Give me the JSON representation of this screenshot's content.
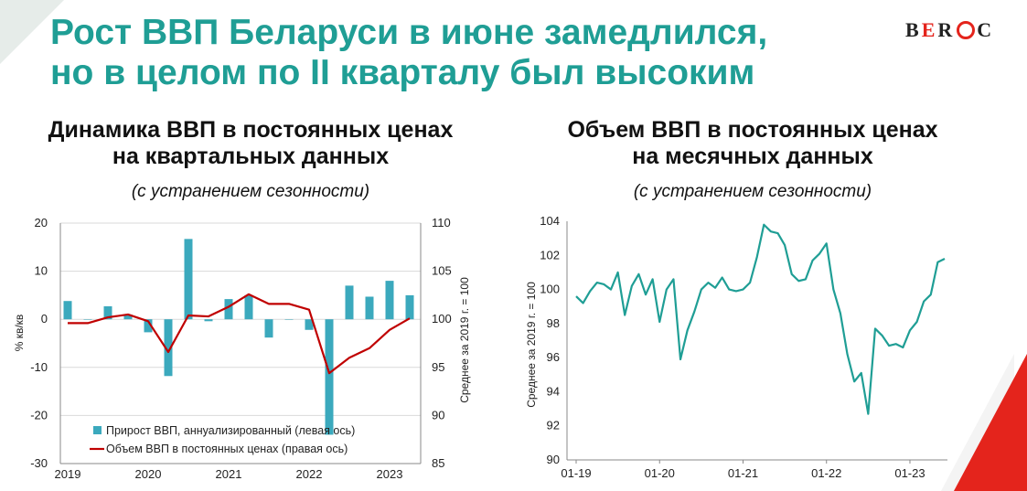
{
  "headline": {
    "line1": "Рост ВВП Беларуси в июне замедлился,",
    "line2": "но в целом по II кварталу был высоким"
  },
  "logo": {
    "b": "B",
    "e": "E",
    "r": "R",
    "c": "C"
  },
  "colors": {
    "accent": "#1f9e95",
    "bar": "#3ba9bd",
    "line_red": "#c00000",
    "line_teal": "#1f9e95",
    "brand_red": "#e4241c"
  },
  "left_chart": {
    "title_line1": "Динамика ВВП в постоянных ценах",
    "title_line2": "на квартальных данных",
    "subtitle": "(с устранением сезонности)"
  },
  "right_chart": {
    "title_line1": "Объем ВВП в постоянных ценах",
    "title_line2": "на месячных данных",
    "subtitle": "(с устранением сезонности)"
  },
  "chart_data": [
    {
      "type": "bar",
      "title": "Динамика ВВП в постоянных ценах на квартальных данных",
      "subtitle": "(с устранением сезонности)",
      "ylabel": "% кв/кв",
      "y2label": "Среднее за 2019 г. = 100",
      "ylim": [
        -30,
        20
      ],
      "y2lim": [
        85,
        110
      ],
      "yticks": [
        "20",
        "10",
        "0",
        "-10",
        "-20",
        "-30"
      ],
      "y2ticks": [
        "110",
        "105",
        "100",
        "95",
        "90",
        "85"
      ],
      "xticks": [
        "2019",
        "2020",
        "2021",
        "2022",
        "2023"
      ],
      "grid": "horizontal",
      "legend_position": "bottom-center",
      "categories": [
        "2019Q1",
        "2019Q2",
        "2019Q3",
        "2019Q4",
        "2020Q1",
        "2020Q2",
        "2020Q3",
        "2020Q4",
        "2021Q1",
        "2021Q2",
        "2021Q3",
        "2021Q4",
        "2022Q1",
        "2022Q2",
        "2022Q3",
        "2022Q4",
        "2023Q1",
        "2023Q2"
      ],
      "series": [
        {
          "name": "Прирост ВВП, аннуализированный (левая ось)",
          "type": "bar",
          "axis": "left",
          "values": [
            3.8,
            0,
            2.7,
            1.0,
            -2.7,
            -11.8,
            16.7,
            -0.4,
            4.2,
            5.0,
            -3.8,
            0,
            -2.2,
            -24.0,
            7.0,
            4.7,
            8.0,
            5.0
          ]
        },
        {
          "name": "Объем ВВП в постоянных ценах (правая ось)",
          "type": "line",
          "axis": "right",
          "values": [
            99.6,
            99.6,
            100.2,
            100.5,
            99.8,
            96.6,
            100.4,
            100.3,
            101.3,
            102.6,
            101.6,
            101.6,
            101.0,
            94.4,
            96.0,
            97.0,
            98.9,
            100.1
          ]
        }
      ]
    },
    {
      "type": "line",
      "title": "Объем ВВП в постоянных ценах на месячных данных",
      "subtitle": "(с устранением сезонности)",
      "ylabel": "Среднее за 2019 г. = 100",
      "ylim": [
        90,
        104
      ],
      "yticks": [
        "104",
        "102",
        "100",
        "98",
        "96",
        "94",
        "92",
        "90"
      ],
      "xticks": [
        "01-19",
        "01-20",
        "01-21",
        "01-22",
        "01-23"
      ],
      "grid": "none",
      "x": [
        "01-19",
        "02-19",
        "03-19",
        "04-19",
        "05-19",
        "06-19",
        "07-19",
        "08-19",
        "09-19",
        "10-19",
        "11-19",
        "12-19",
        "01-20",
        "02-20",
        "03-20",
        "04-20",
        "05-20",
        "06-20",
        "07-20",
        "08-20",
        "09-20",
        "10-20",
        "11-20",
        "12-20",
        "01-21",
        "02-21",
        "03-21",
        "04-21",
        "05-21",
        "06-21",
        "07-21",
        "08-21",
        "09-21",
        "10-21",
        "11-21",
        "12-21",
        "01-22",
        "02-22",
        "03-22",
        "04-22",
        "05-22",
        "06-22",
        "07-22",
        "08-22",
        "09-22",
        "10-22",
        "11-22",
        "12-22",
        "01-23",
        "02-23",
        "03-23",
        "04-23",
        "05-23",
        "06-23"
      ],
      "series": [
        {
          "name": "",
          "values": [
            99.6,
            99.2,
            99.9,
            100.4,
            100.3,
            100.0,
            101.0,
            98.5,
            100.2,
            100.9,
            99.7,
            100.6,
            98.1,
            100.0,
            100.6,
            95.9,
            97.6,
            98.7,
            100.0,
            100.4,
            100.1,
            100.7,
            100.0,
            99.9,
            100.0,
            100.4,
            101.9,
            103.8,
            103.4,
            103.3,
            102.6,
            100.9,
            100.5,
            100.6,
            101.7,
            102.1,
            102.7,
            100.0,
            98.6,
            96.2,
            94.6,
            95.1,
            92.7,
            97.7,
            97.3,
            96.7,
            96.8,
            96.6,
            97.6,
            98.1,
            99.3,
            99.7,
            101.6,
            101.8
          ]
        }
      ]
    }
  ]
}
